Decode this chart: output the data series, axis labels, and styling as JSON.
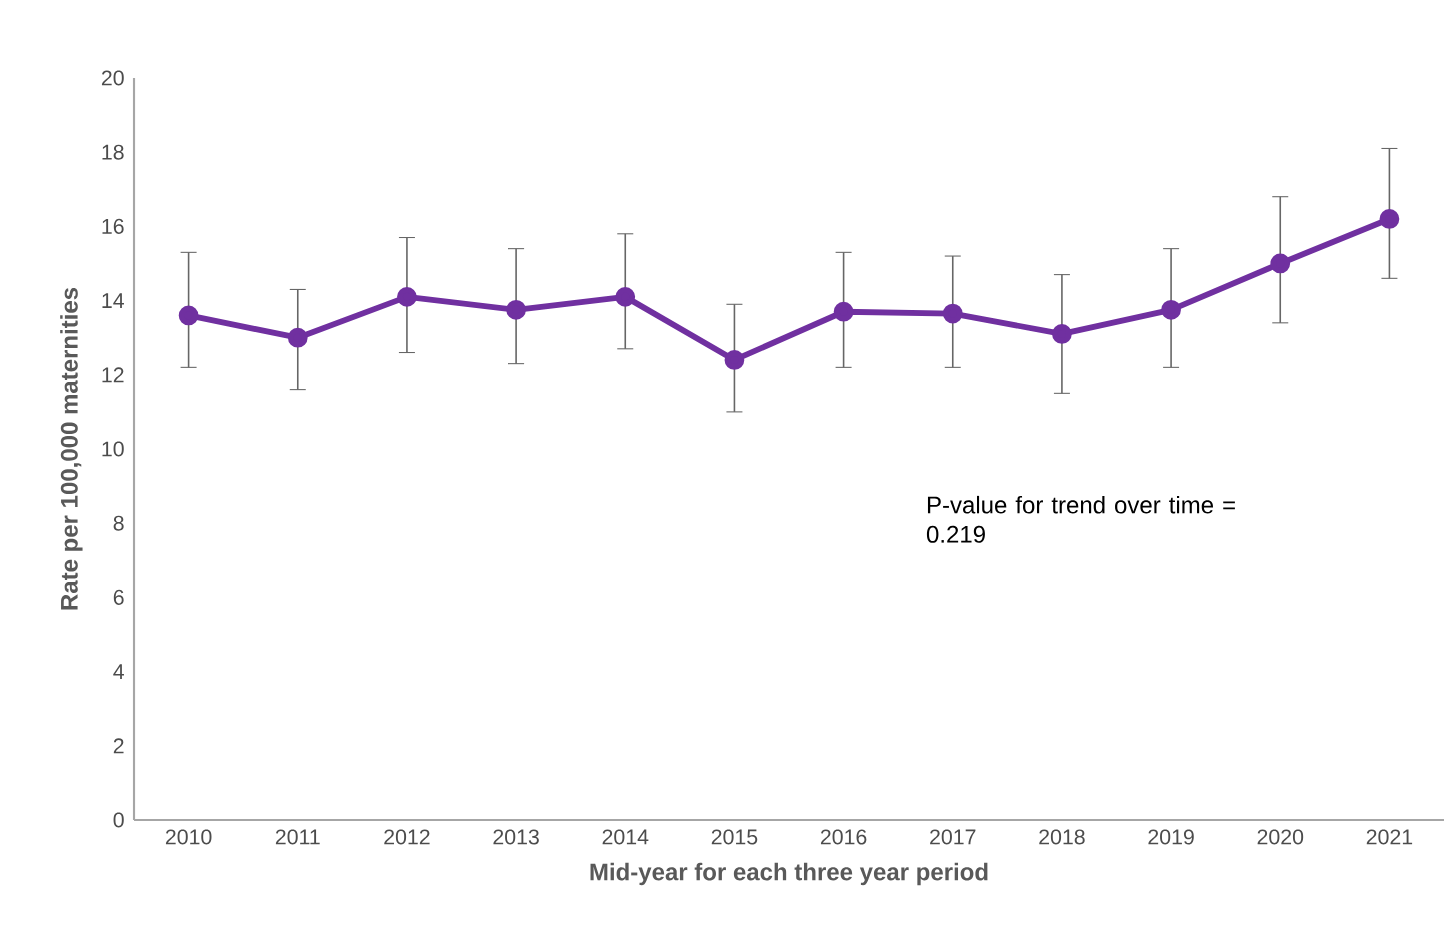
{
  "chart_data": {
    "type": "line",
    "xlabel": "Mid-year for each three year period",
    "ylabel": "Rate per 100,000 maternities",
    "categories": [
      "2010",
      "2011",
      "2012",
      "2013",
      "2014",
      "2015",
      "2016",
      "2017",
      "2018",
      "2019",
      "2020",
      "2021"
    ],
    "series": [
      {
        "color": "#7030a0",
        "values": [
          13.6,
          13.0,
          14.1,
          13.75,
          14.1,
          12.4,
          13.7,
          13.65,
          13.1,
          13.75,
          15.0,
          16.2
        ],
        "errors": [
          [
            12.2,
            15.3
          ],
          [
            11.6,
            14.3
          ],
          [
            12.6,
            15.7
          ],
          [
            12.3,
            15.4
          ],
          [
            12.7,
            15.8
          ],
          [
            11.0,
            13.9
          ],
          [
            12.2,
            15.3
          ],
          [
            12.2,
            15.2
          ],
          [
            11.5,
            14.7
          ],
          [
            12.2,
            15.4
          ],
          [
            13.4,
            16.8
          ],
          [
            14.6,
            18.1
          ]
        ]
      }
    ],
    "ylim": [
      0,
      20
    ],
    "yticks": [
      0,
      2,
      4,
      6,
      8,
      10,
      12,
      14,
      16,
      18,
      20
    ],
    "grid": false,
    "marker": "circle",
    "line_style": "solid",
    "annotations": [
      "P-value for trend over time = 0.219"
    ]
  }
}
